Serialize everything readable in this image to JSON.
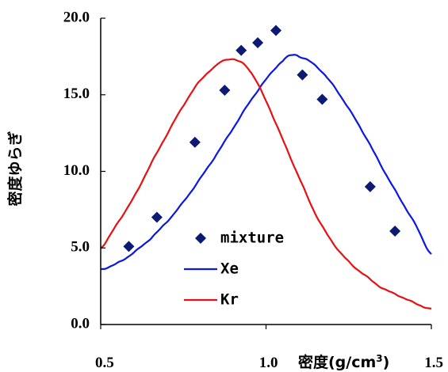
{
  "chart_data": {
    "type": "scatter",
    "xlabel": "密度(g/cm",
    "xlabel_superscript": "3",
    "xlabel_close": ")",
    "ylabel": "密度ゆらぎ",
    "xlim": [
      0.5,
      1.5
    ],
    "ylim": [
      0.0,
      20.0
    ],
    "x_ticks": [
      "0.5",
      "1.0",
      "1.5"
    ],
    "x_tick_values": [
      0.5,
      1.0,
      1.5
    ],
    "y_ticks": [
      "0.0",
      "5.0",
      "10.0",
      "15.0",
      "20.0"
    ],
    "y_tick_values": [
      0.0,
      5.0,
      10.0,
      15.0,
      20.0
    ],
    "grid": false,
    "legend_position": "bottom-left",
    "series": [
      {
        "name": "mixture",
        "kind": "scatter",
        "marker": "diamond",
        "color": "#0c1a73",
        "points": [
          [
            0.585,
            5.1
          ],
          [
            0.67,
            7.0
          ],
          [
            0.785,
            11.9
          ],
          [
            0.875,
            15.3
          ],
          [
            0.925,
            17.9
          ],
          [
            0.975,
            18.4
          ],
          [
            1.03,
            19.2
          ],
          [
            1.11,
            16.3
          ],
          [
            1.17,
            14.7
          ],
          [
            1.315,
            9.0
          ],
          [
            1.39,
            6.1
          ]
        ]
      },
      {
        "name": "Xe",
        "kind": "line",
        "color": "#0a17e6",
        "points": [
          [
            0.5,
            3.6
          ],
          [
            0.55,
            4.0
          ],
          [
            0.6,
            4.7
          ],
          [
            0.65,
            5.6
          ],
          [
            0.7,
            6.7
          ],
          [
            0.75,
            8.0
          ],
          [
            0.8,
            9.5
          ],
          [
            0.85,
            11.1
          ],
          [
            0.9,
            12.8
          ],
          [
            0.95,
            14.5
          ],
          [
            1.0,
            16.0
          ],
          [
            1.05,
            17.2
          ],
          [
            1.08,
            17.6
          ],
          [
            1.1,
            17.5
          ],
          [
            1.15,
            16.9
          ],
          [
            1.2,
            15.7
          ],
          [
            1.25,
            14.1
          ],
          [
            1.3,
            12.3
          ],
          [
            1.35,
            10.3
          ],
          [
            1.4,
            8.4
          ],
          [
            1.45,
            6.6
          ],
          [
            1.5,
            4.6
          ]
        ]
      },
      {
        "name": "Kr",
        "kind": "line",
        "color": "#e81010",
        "points": [
          [
            0.5,
            5.0
          ],
          [
            0.55,
            6.6
          ],
          [
            0.6,
            8.3
          ],
          [
            0.65,
            10.4
          ],
          [
            0.7,
            12.4
          ],
          [
            0.75,
            14.3
          ],
          [
            0.8,
            15.9
          ],
          [
            0.85,
            16.9
          ],
          [
            0.88,
            17.3
          ],
          [
            0.91,
            17.25
          ],
          [
            0.95,
            16.6
          ],
          [
            1.0,
            14.6
          ],
          [
            1.05,
            12.1
          ],
          [
            1.1,
            9.6
          ],
          [
            1.15,
            7.2
          ],
          [
            1.2,
            5.4
          ],
          [
            1.25,
            4.1
          ],
          [
            1.3,
            3.2
          ],
          [
            1.35,
            2.4
          ],
          [
            1.4,
            1.9
          ],
          [
            1.45,
            1.4
          ],
          [
            1.5,
            1.0
          ]
        ]
      }
    ]
  }
}
